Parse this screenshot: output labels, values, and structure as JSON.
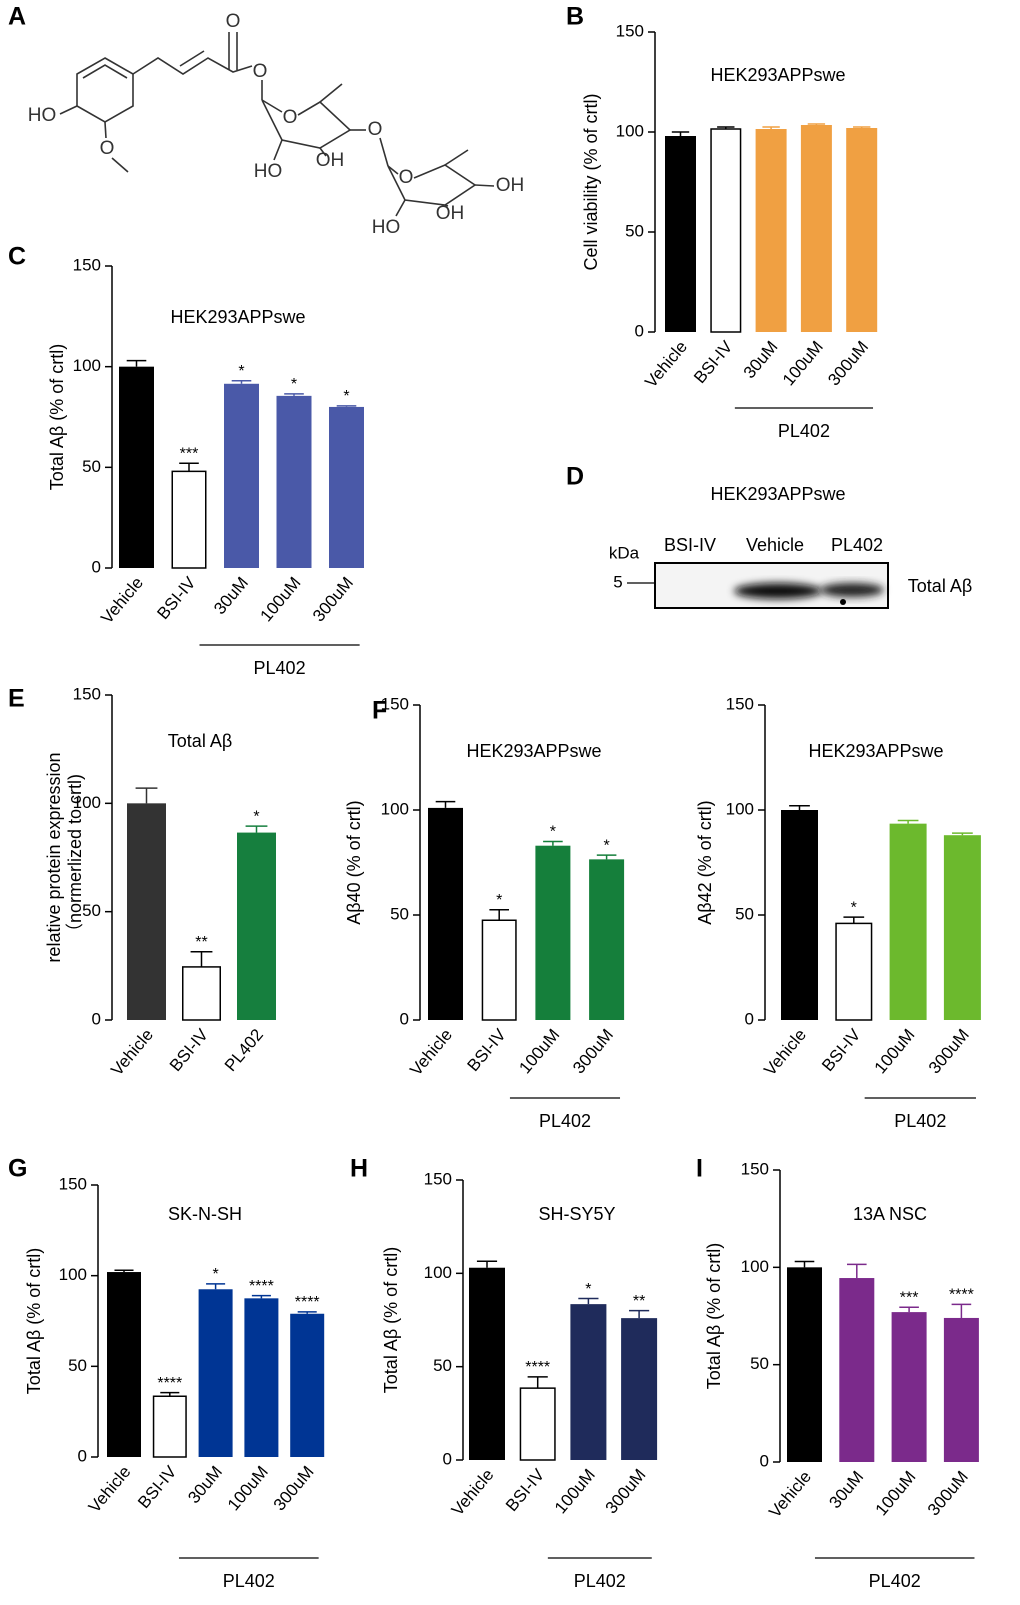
{
  "structure": {
    "panel": "A",
    "labels": [
      "O",
      "O",
      "HO",
      "O",
      "O",
      "O",
      "HO",
      "OH",
      "O",
      "OH",
      "HO",
      "OH"
    ]
  },
  "blot": {
    "panel": "D",
    "title": "HEK293APPswe",
    "unit": "kDa",
    "marker": "5",
    "lanes": [
      "BSI-IV",
      "Vehicle",
      "PL402"
    ],
    "band_label": "Total Aβ"
  },
  "chart_data": [
    {
      "type": "bar",
      "panel": "B",
      "title": "HEK293APPswe",
      "ylabel": "Cell viability (% of crtl)",
      "categories": [
        "Vehicle",
        "BSI-IV",
        "30uM",
        "100uM",
        "300uM"
      ],
      "values": [
        98,
        101.5,
        101.5,
        103.5,
        102
      ],
      "errors": [
        2,
        1,
        1,
        0.5,
        0.5
      ],
      "colors": [
        "#000000",
        "#ffffff",
        "#f0a042",
        "#f0a042",
        "#f0a042"
      ],
      "annotations": [
        null,
        null,
        null,
        null,
        null
      ],
      "group": {
        "label": "PL402",
        "span": [
          2,
          4
        ]
      },
      "ylim": [
        0,
        150
      ],
      "yticks": [
        0,
        50,
        100,
        150
      ]
    },
    {
      "type": "bar",
      "panel": "C",
      "title": "HEK293APPswe",
      "ylabel": "Total Aβ (% of crtl)",
      "categories": [
        "Vehicle",
        "BSI-IV",
        "30uM",
        "100uM",
        "300uM"
      ],
      "values": [
        100,
        48,
        91.5,
        85.5,
        80
      ],
      "errors": [
        3,
        4,
        1.5,
        1,
        0.5
      ],
      "colors": [
        "#000000",
        "#ffffff",
        "#4a59a8",
        "#4a59a8",
        "#4a59a8"
      ],
      "annotations": [
        null,
        "***",
        "*",
        "*",
        "*"
      ],
      "group": {
        "label": "PL402",
        "span": [
          2,
          4
        ]
      },
      "ylim": [
        0,
        150
      ],
      "yticks": [
        0,
        50,
        100,
        150
      ]
    },
    {
      "type": "bar",
      "panel": "E",
      "title": "Total Aβ",
      "ylabel": [
        "relative protein expression",
        "（normerlized to crtl)"
      ],
      "categories": [
        "Vehicle",
        "BSI-IV",
        "PL402"
      ],
      "values": [
        100,
        24.5,
        86.5
      ],
      "errors": [
        7,
        7,
        3
      ],
      "colors": [
        "#333333",
        "#ffffff",
        "#167f3e"
      ],
      "annotations": [
        null,
        "**",
        "*"
      ],
      "ylim": [
        0,
        150
      ],
      "yticks": [
        0,
        50,
        100,
        150
      ]
    },
    {
      "type": "bar",
      "panel": "F",
      "title": "HEK293APPswe",
      "ylabel": "Aβ40 (% of crtl)",
      "categories": [
        "Vehicle",
        "BSI-IV",
        "100uM",
        "300uM"
      ],
      "values": [
        101,
        47.5,
        83,
        76.5
      ],
      "errors": [
        3,
        5,
        2,
        2
      ],
      "colors": [
        "#000000",
        "#ffffff",
        "#157f3b",
        "#157f3b"
      ],
      "annotations": [
        null,
        "*",
        "*",
        "*"
      ],
      "group": {
        "label": "PL402",
        "span": [
          2,
          3
        ]
      },
      "ylim": [
        0,
        150
      ],
      "yticks": [
        0,
        50,
        100,
        150
      ]
    },
    {
      "type": "bar",
      "title": "HEK293APPswe",
      "ylabel": "Aβ42 (% of crtl)",
      "categories": [
        "Vehicle",
        "BSI-IV",
        "100uM",
        "300uM"
      ],
      "values": [
        100,
        46,
        93.5,
        88
      ],
      "errors": [
        2,
        3,
        1.5,
        1
      ],
      "colors": [
        "#000000",
        "#ffffff",
        "#6cb92d",
        "#6cb92d"
      ],
      "annotations": [
        null,
        "*",
        null,
        null
      ],
      "group": {
        "label": "PL402",
        "span": [
          2,
          3
        ]
      },
      "ylim": [
        0,
        150
      ],
      "yticks": [
        0,
        50,
        100,
        150
      ]
    },
    {
      "type": "bar",
      "panel": "G",
      "title": "SK-N-SH",
      "ylabel": "Total Aβ (% of crtl)",
      "categories": [
        "Vehicle",
        "BSI-IV",
        "30uM",
        "100uM",
        "300uM"
      ],
      "values": [
        102,
        33.5,
        92.5,
        87.5,
        79
      ],
      "errors": [
        1,
        2,
        3,
        1.5,
        1
      ],
      "colors": [
        "#000000",
        "#ffffff",
        "#003594",
        "#003594",
        "#003594"
      ],
      "annotations": [
        null,
        "****",
        "*",
        "****",
        "****"
      ],
      "group": {
        "label": "PL402",
        "span": [
          2,
          4
        ]
      },
      "ylim": [
        0,
        150
      ],
      "yticks": [
        0,
        50,
        100,
        150
      ]
    },
    {
      "type": "bar",
      "panel": "H",
      "title": "SH-SY5Y",
      "ylabel": "Total Aβ (% of crtl)",
      "categories": [
        "Vehicle",
        "BSI-IV",
        "100uM",
        "300uM"
      ],
      "values": [
        103,
        38.5,
        83.5,
        76
      ],
      "errors": [
        3.5,
        6,
        3,
        4
      ],
      "colors": [
        "#000000",
        "#ffffff",
        "#1f2b5b",
        "#1f2b5b"
      ],
      "annotations": [
        null,
        "****",
        "*",
        "**"
      ],
      "group": {
        "label": "PL402",
        "span": [
          2,
          3
        ]
      },
      "ylim": [
        0,
        150
      ],
      "yticks": [
        0,
        50,
        100,
        150
      ]
    },
    {
      "type": "bar",
      "panel": "I",
      "title": "13A NSC",
      "ylabel": "Total Aβ (% of crtl)",
      "categories": [
        "Vehicle",
        "30uM",
        "100uM",
        "300uM"
      ],
      "values": [
        100,
        94.5,
        77,
        74
      ],
      "errors": [
        3,
        7,
        2.5,
        7
      ],
      "colors": [
        "#000000",
        "#7b2a8b",
        "#7b2a8b",
        "#7b2a8b"
      ],
      "annotations": [
        null,
        null,
        "***",
        "****"
      ],
      "group": {
        "label": "PL402",
        "span": [
          1,
          3
        ]
      },
      "ylim": [
        0,
        150
      ],
      "yticks": [
        0,
        50,
        100,
        150
      ]
    }
  ]
}
